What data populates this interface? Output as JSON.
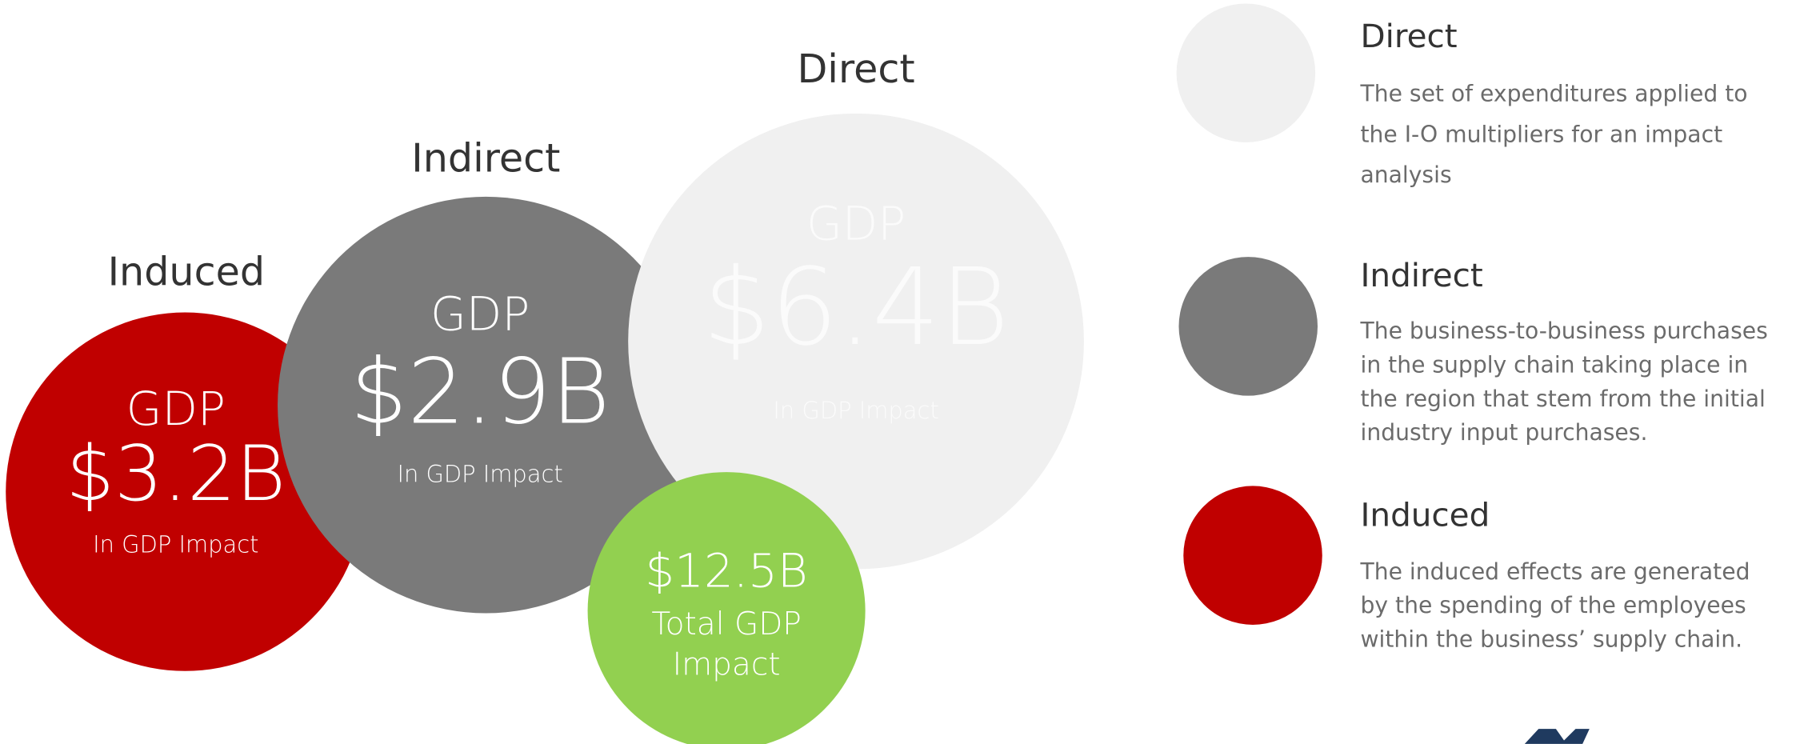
{
  "bubbles": {
    "direct": {
      "label": "Direct",
      "metric": "GDP",
      "amount": "$6.4B",
      "caption": "In GDP Impact"
    },
    "indirect": {
      "label": "Indirect",
      "metric": "GDP",
      "amount": "$2.9B",
      "caption": "In GDP Impact"
    },
    "induced": {
      "label": "Induced",
      "metric": "GDP",
      "amount": "$3.2B",
      "caption": "In GDP Impact"
    },
    "total": {
      "amount": "$12.5B",
      "caption_lines": [
        "Total GDP",
        "Impact"
      ]
    }
  },
  "legend": [
    {
      "title": "Direct",
      "lines": [
        "The set of expenditures applied to",
        "the I-O multipliers for an impact",
        "analysis"
      ]
    },
    {
      "title": "Indirect",
      "lines": [
        "The business-to-business purchases",
        "in the supply chain taking place in",
        "the region that stem from the initial",
        "industry input purchases."
      ]
    },
    {
      "title": "Induced",
      "lines": [
        "The induced effects are generated",
        "by the spending of the employees",
        "within the business’ supply chain."
      ]
    }
  ]
}
